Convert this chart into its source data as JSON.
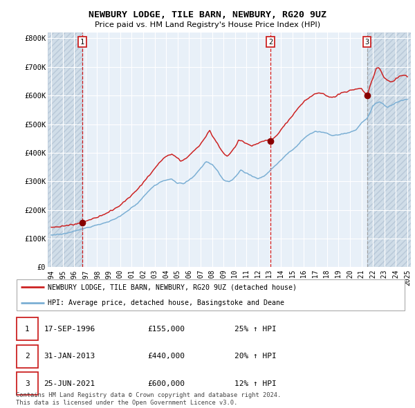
{
  "title": "NEWBURY LODGE, TILE BARN, NEWBURY, RG20 9UZ",
  "subtitle": "Price paid vs. HM Land Registry's House Price Index (HPI)",
  "legend_line1": "NEWBURY LODGE, TILE BARN, NEWBURY, RG20 9UZ (detached house)",
  "legend_line2": "HPI: Average price, detached house, Basingstoke and Deane",
  "footer1": "Contains HM Land Registry data © Crown copyright and database right 2024.",
  "footer2": "This data is licensed under the Open Government Licence v3.0.",
  "sale_events": [
    {
      "label": "1",
      "date_str": "17-SEP-1996",
      "date_num": 1996.72,
      "price": 155000,
      "vline_color": "#cc0000"
    },
    {
      "label": "2",
      "date_str": "31-JAN-2013",
      "date_num": 2013.08,
      "price": 440000,
      "vline_color": "#cc0000"
    },
    {
      "label": "3",
      "date_str": "25-JUN-2021",
      "date_num": 2021.49,
      "price": 600000,
      "vline_color": "#999999"
    }
  ],
  "table_rows": [
    [
      "1",
      "17-SEP-1996",
      "£155,000",
      "25% ↑ HPI"
    ],
    [
      "2",
      "31-JAN-2013",
      "£440,000",
      "20% ↑ HPI"
    ],
    [
      "3",
      "25-JUN-2021",
      "£600,000",
      "12% ↑ HPI"
    ]
  ],
  "hpi_color": "#7bafd4",
  "price_color": "#cc2222",
  "bg_color": "#e8f0f8",
  "hatch_bg_color": "#d0dde8",
  "grid_color": "#ffffff",
  "ylim": [
    0,
    820000
  ],
  "xlim_start": 1993.7,
  "xlim_end": 2025.3,
  "yticks": [
    0,
    100000,
    200000,
    300000,
    400000,
    500000,
    600000,
    700000,
    800000
  ],
  "ytick_labels": [
    "£0",
    "£100K",
    "£200K",
    "£300K",
    "£400K",
    "£500K",
    "£600K",
    "£700K",
    "£800K"
  ],
  "xticks": [
    1994,
    1995,
    1996,
    1997,
    1998,
    1999,
    2000,
    2001,
    2002,
    2003,
    2004,
    2005,
    2006,
    2007,
    2008,
    2009,
    2010,
    2011,
    2012,
    2013,
    2014,
    2015,
    2016,
    2017,
    2018,
    2019,
    2020,
    2021,
    2022,
    2023,
    2024,
    2025
  ]
}
